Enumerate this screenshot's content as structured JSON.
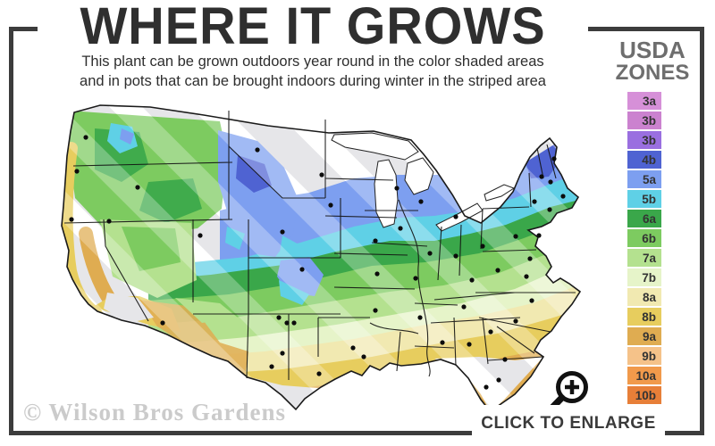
{
  "header": {
    "title": "WHERE IT GROWS",
    "subtitle_line1": "This plant can be grown outdoors year round in the color shaded areas",
    "subtitle_line2": "and in pots that can be brought indoors during winter in the striped area"
  },
  "legend": {
    "title_line1": "USDA",
    "title_line2": "ZONES",
    "zones": [
      {
        "label": "3a",
        "color": "#d690d8"
      },
      {
        "label": "3b",
        "color": "#cb82cf"
      },
      {
        "label": "3b",
        "color": "#9a6fe0"
      },
      {
        "label": "4b",
        "color": "#4f63d2"
      },
      {
        "label": "5a",
        "color": "#7d9ff0"
      },
      {
        "label": "5b",
        "color": "#5fd0e6"
      },
      {
        "label": "6a",
        "color": "#3aa74a"
      },
      {
        "label": "6b",
        "color": "#7dcb60"
      },
      {
        "label": "7a",
        "color": "#b4e18f"
      },
      {
        "label": "7b",
        "color": "#e6f4c9"
      },
      {
        "label": "8a",
        "color": "#f1e9b1"
      },
      {
        "label": "8b",
        "color": "#e7cd5e"
      },
      {
        "label": "9a",
        "color": "#dfac51"
      },
      {
        "label": "9b",
        "color": "#f5c289"
      },
      {
        "label": "10a",
        "color": "#f19a4b"
      },
      {
        "label": "10b",
        "color": "#e77f38"
      }
    ]
  },
  "map": {
    "description": "Stylized USDA plant hardiness zone map of the continental United States with striped gray areas (indoor-pot regions), colored zone bands, state borders and city dots",
    "striped_area_color": "#e6e6e9",
    "outline_color": "#1a1a1a"
  },
  "footer": {
    "watermark": "© Wilson Bros Gardens",
    "enlarge_label": "CLICK TO ENLARGE",
    "enlarge_icon": "magnifier-plus-icon"
  }
}
